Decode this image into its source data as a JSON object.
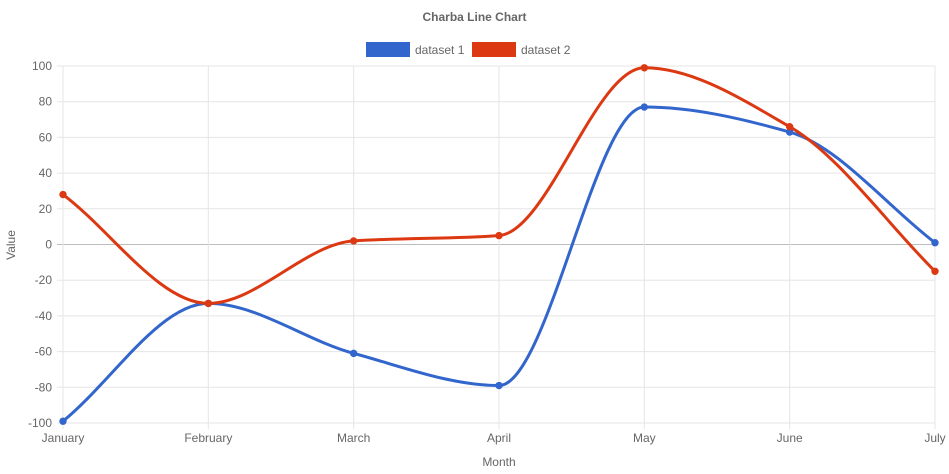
{
  "chart_data": {
    "type": "line",
    "title": "Charba Line Chart",
    "xlabel": "Month",
    "ylabel": "Value",
    "categories": [
      "January",
      "February",
      "March",
      "April",
      "May",
      "June",
      "July"
    ],
    "ylim": [
      -100,
      100
    ],
    "yticks": [
      "100",
      "80",
      "60",
      "40",
      "20",
      "0",
      "-20",
      "-40",
      "-60",
      "-80",
      "-100"
    ],
    "grid": true,
    "legend_position": "top",
    "series": [
      {
        "name": "dataset 1",
        "color": "#3366cc",
        "values": [
          -99,
          -33,
          -61,
          -79,
          77,
          63,
          1
        ]
      },
      {
        "name": "dataset 2",
        "color": "#dc3912",
        "values": [
          28,
          -33,
          2,
          5,
          99,
          66,
          -15
        ]
      }
    ]
  }
}
